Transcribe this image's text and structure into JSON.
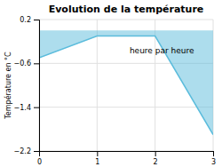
{
  "chart_data": {
    "type": "area",
    "title": "Evolution de la température",
    "ylabel": "Température en °C",
    "annotation": "heure par heure",
    "x": [
      0,
      1,
      2,
      3
    ],
    "values": [
      -0.5,
      -0.1,
      -0.1,
      -1.9
    ],
    "color": "#5bbcdc",
    "xlim": [
      0,
      3
    ],
    "ylim": [
      -2.2,
      0.2
    ],
    "xticks": [
      0,
      1,
      2,
      3
    ],
    "yticks": [
      0.2,
      -0.6,
      -1.4,
      -2.2
    ],
    "grid": true
  }
}
